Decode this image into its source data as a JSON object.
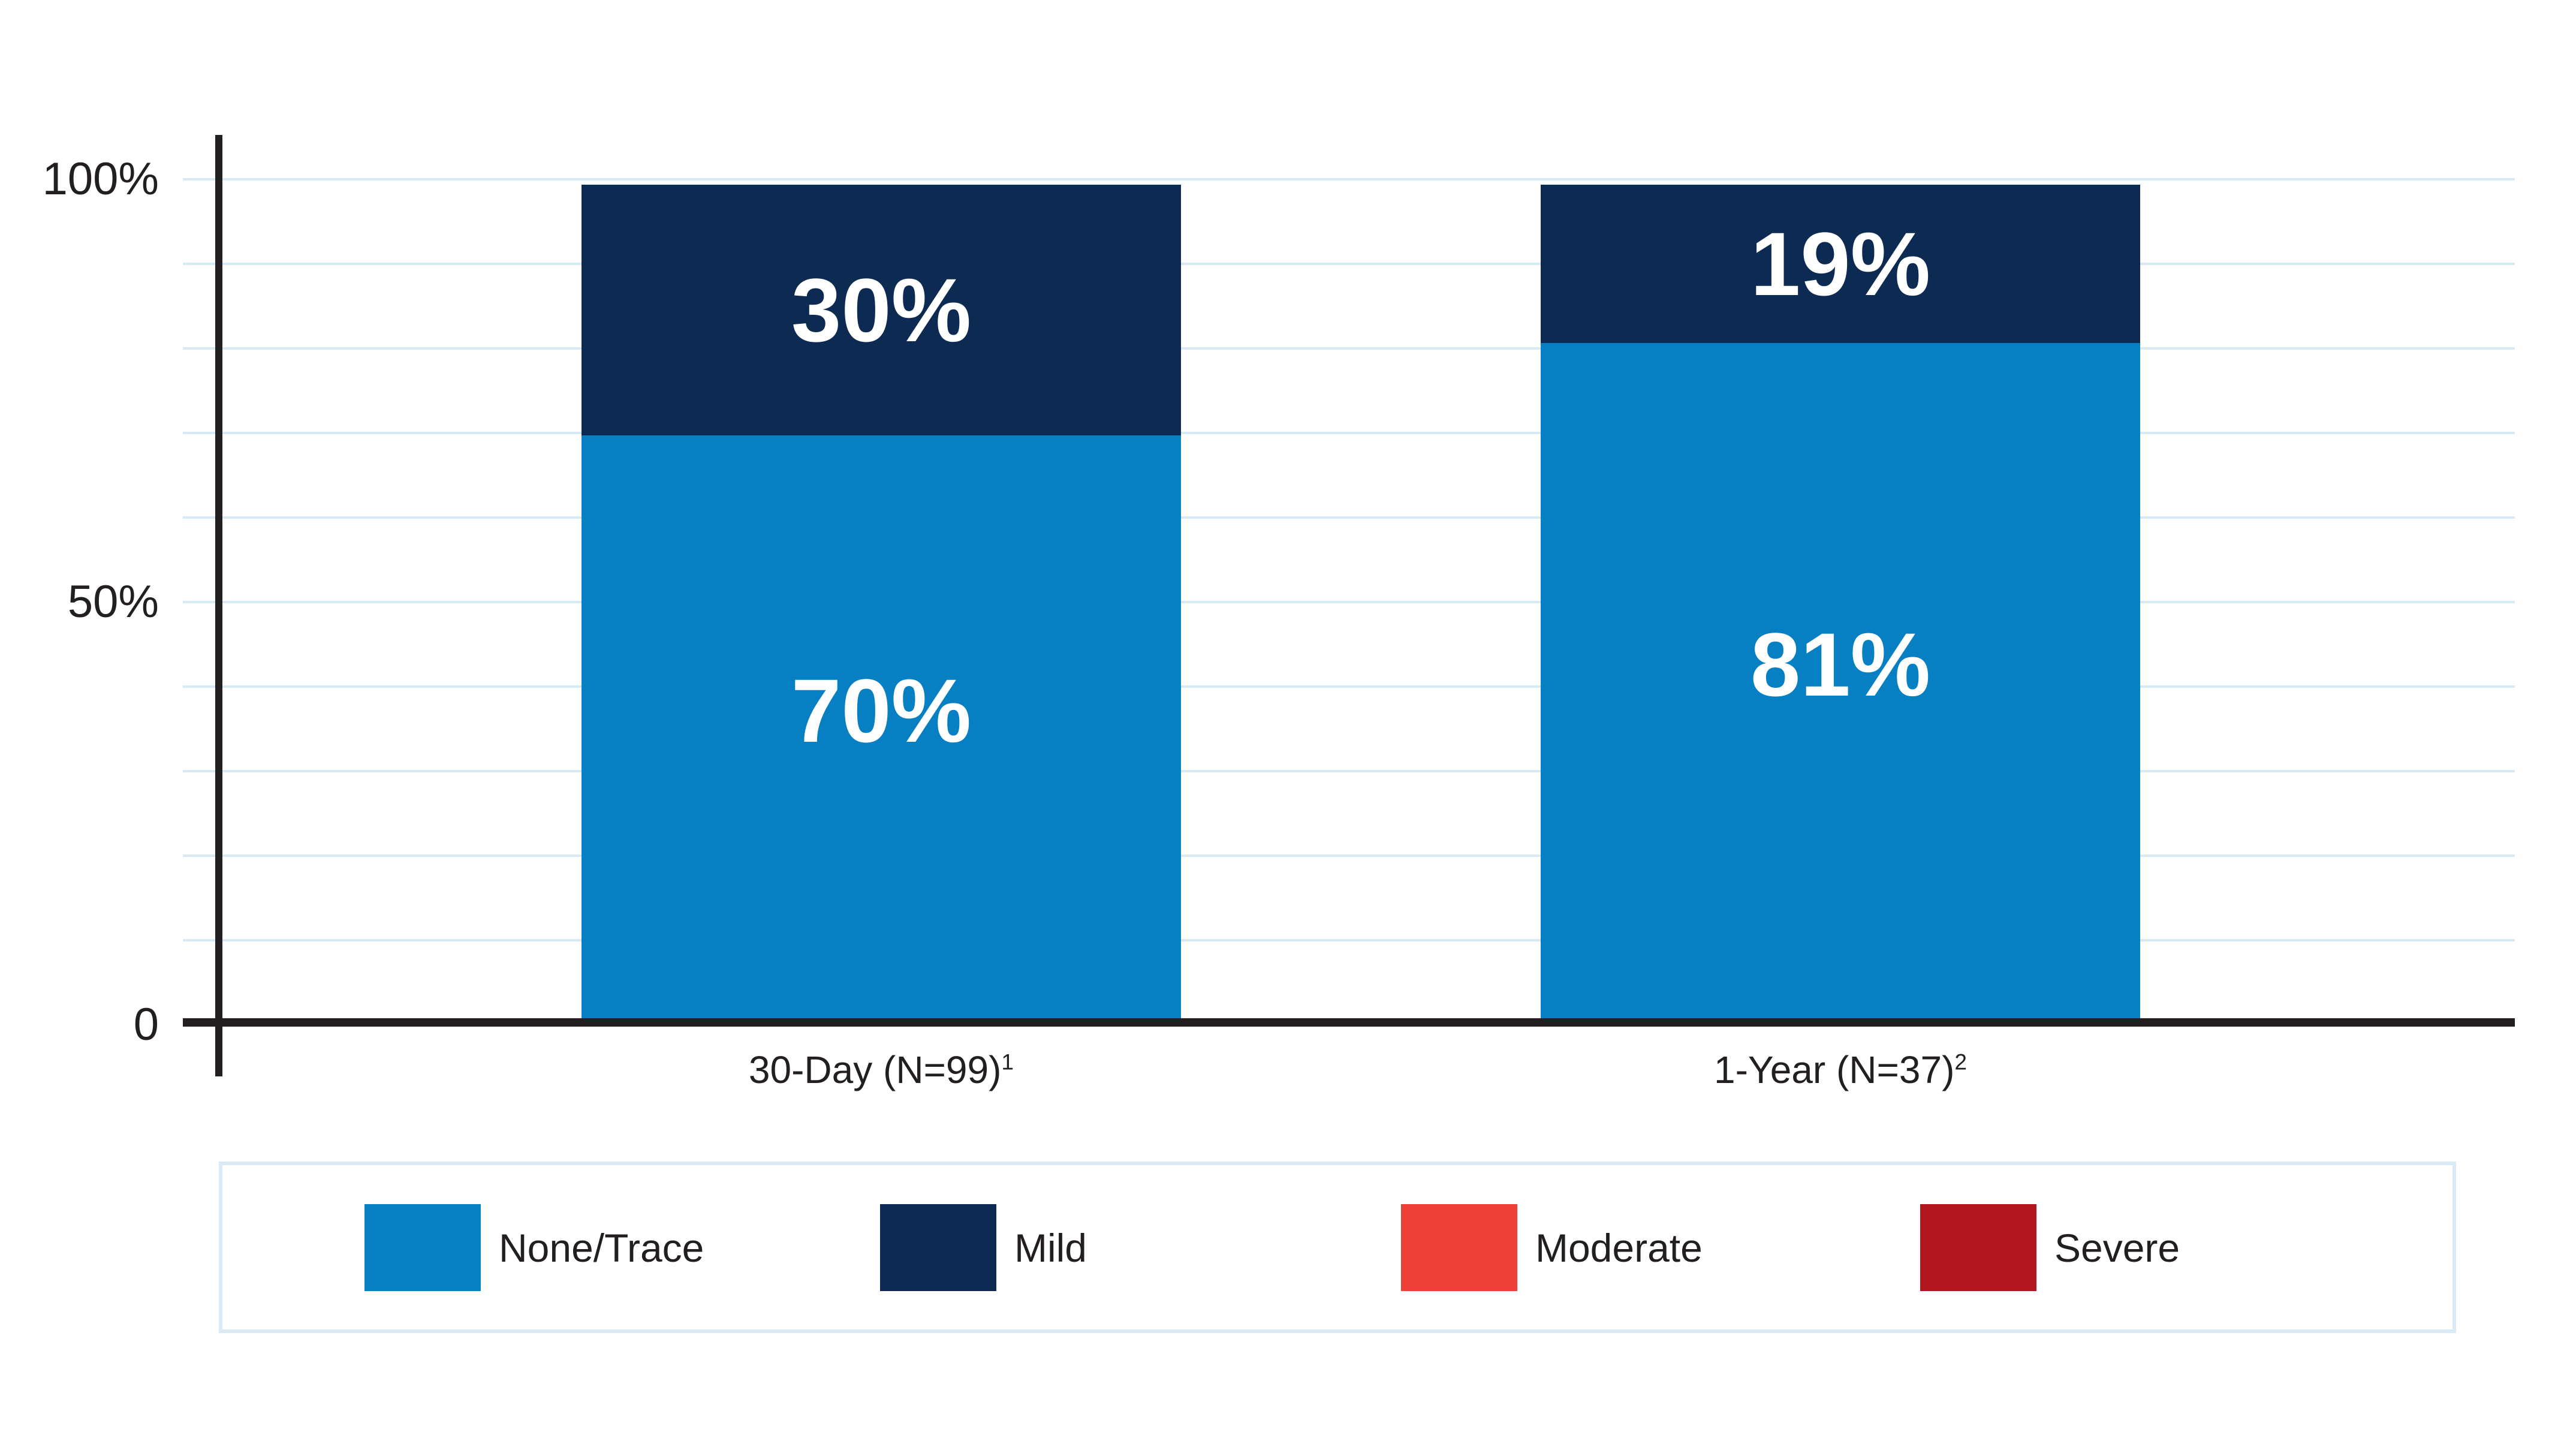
{
  "chart_data": {
    "type": "bar",
    "stacked": true,
    "categories": [
      "30-Day (N=99)",
      "1-Year (N=37)"
    ],
    "category_superscripts": [
      "1",
      "2"
    ],
    "series": [
      {
        "name": "None/Trace",
        "color": "#0780C3",
        "values": [
          70,
          81
        ],
        "data_labels": [
          "70%",
          "81%"
        ]
      },
      {
        "name": "Mild",
        "color": "#0D2B52",
        "values": [
          30,
          19
        ],
        "data_labels": [
          "30%",
          "19%"
        ]
      },
      {
        "name": "Moderate",
        "color": "#EE4037",
        "values": [
          0,
          0
        ],
        "data_labels": null
      },
      {
        "name": "Severe",
        "color": "#B1161F",
        "values": [
          0,
          0
        ],
        "data_labels": null
      }
    ],
    "ylim": [
      0,
      100
    ],
    "yticks": [
      {
        "label": "100%",
        "value": 100
      },
      {
        "label": "50%",
        "value": 50
      },
      {
        "label": "0",
        "value": 0
      }
    ],
    "gridline_step_pct": 10,
    "grid": true,
    "legend_position": "bottom",
    "legend_labels": [
      "None/Trace",
      "Mild",
      "Moderate",
      "Severe"
    ],
    "colors": {
      "axis": "#231F20",
      "gridline": "#D8E9F6",
      "legend_border": "#D9E9F6",
      "data_label_text": "#FFFFFF",
      "background": "#FFFFFF"
    }
  }
}
